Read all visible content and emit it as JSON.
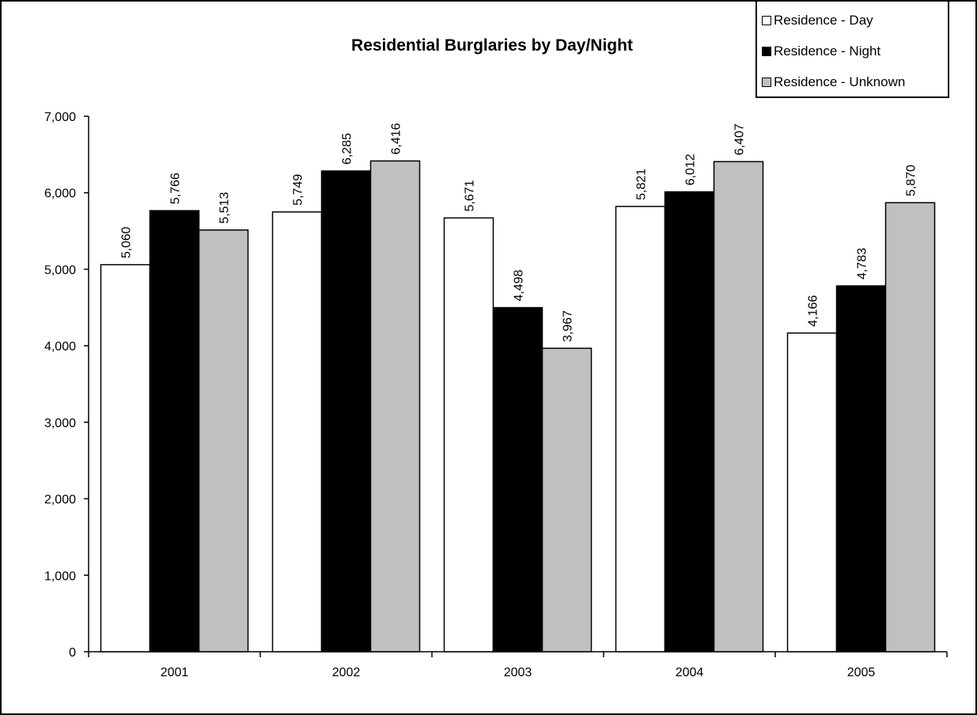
{
  "chart_data": {
    "type": "bar",
    "title": "Residential Burglaries by Day/Night",
    "xlabel": "",
    "ylabel": "",
    "categories": [
      "2001",
      "2002",
      "2003",
      "2004",
      "2005"
    ],
    "ylim": [
      0,
      7000
    ],
    "yticks": [
      0,
      1000,
      2000,
      3000,
      4000,
      5000,
      6000,
      7000
    ],
    "ytick_labels": [
      "0",
      "1,000",
      "2,000",
      "3,000",
      "4,000",
      "5,000",
      "6,000",
      "7,000"
    ],
    "grid": false,
    "legend_position": "top-right",
    "series": [
      {
        "name": "Residence - Day",
        "color": "#ffffff",
        "values": [
          5060,
          5749,
          5671,
          5821,
          4166
        ],
        "labels": [
          "5,060",
          "5,749",
          "5,671",
          "5,821",
          "4,166"
        ]
      },
      {
        "name": "Residence - Night",
        "color": "#000000",
        "values": [
          5766,
          6285,
          4498,
          6012,
          4783
        ],
        "labels": [
          "5,766",
          "6,285",
          "4,498",
          "6,012",
          "4,783"
        ]
      },
      {
        "name": "Residence - Unknown",
        "color": "#c0c0c0",
        "values": [
          5513,
          6416,
          3967,
          6407,
          5870
        ],
        "labels": [
          "5,513",
          "6,416",
          "3,967",
          "6,407",
          "5,870"
        ]
      }
    ]
  }
}
